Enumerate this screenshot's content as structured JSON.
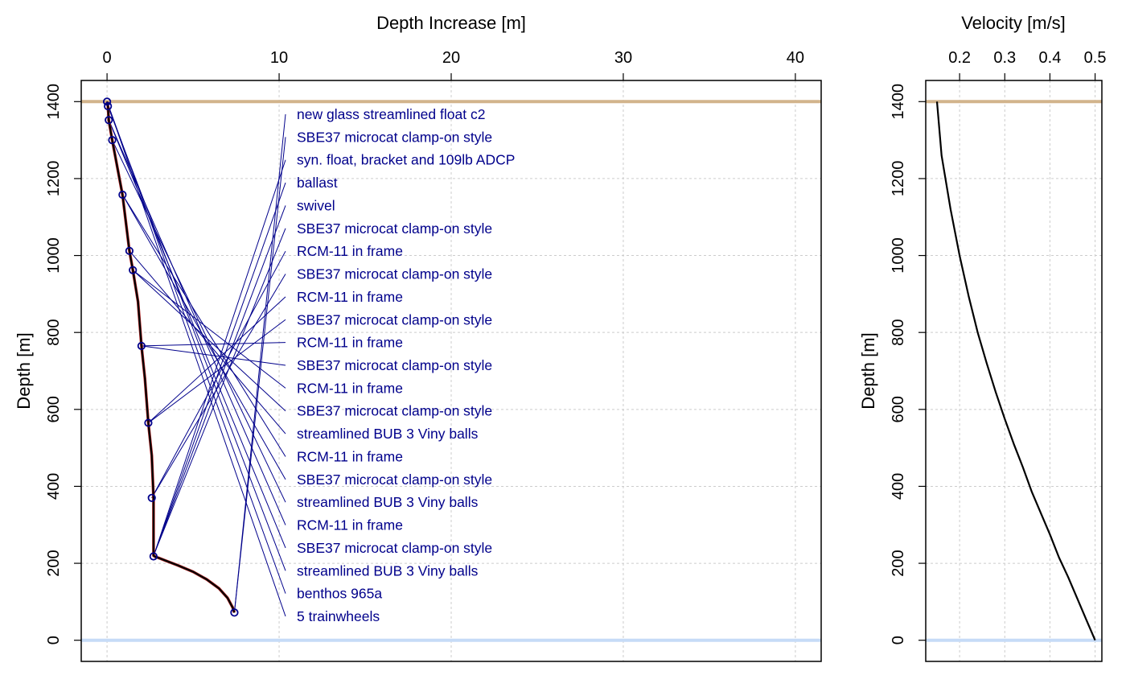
{
  "chart_data": [
    {
      "type": "line",
      "xlabel": "Depth Increase [m]",
      "ylabel": "Depth [m]",
      "xlim": [
        -1.5,
        41.5
      ],
      "ylim": [
        1455,
        -55
      ],
      "x_ticks": [
        0,
        10,
        20,
        30,
        40
      ],
      "y_ticks": [
        0,
        200,
        400,
        600,
        800,
        1000,
        1200,
        1400
      ],
      "x_axis_position": "top",
      "grid": true,
      "surface_depth": 0,
      "bottom_depth": 1400,
      "colors": {
        "surface": "#c6dbf7",
        "bottom": "#d2b48c",
        "instrument": "#00008b",
        "line": "#000000",
        "line_shadow": "#b22222"
      },
      "profile": {
        "x": [
          7.4,
          7.3,
          7.0,
          6.5,
          5.8,
          5.0,
          4.1,
          3.4,
          3.0,
          2.8,
          2.7,
          2.7,
          2.6,
          2.4,
          2.2,
          2.0,
          1.8,
          1.5,
          1.3,
          0.9,
          0.3,
          0.1,
          0.05,
          0.0
        ],
        "y": [
          72,
          85,
          110,
          135,
          158,
          178,
          195,
          207,
          214,
          217,
          220,
          370,
          480,
          565,
          680,
          765,
          880,
          962,
          1012,
          1158,
          1300,
          1352,
          1388,
          1400
        ]
      },
      "instruments": [
        {
          "label": "new glass streamlined float c2",
          "depth": 72,
          "dx": 7.4
        },
        {
          "label": "SBE37 microcat clamp-on style",
          "depth": 72,
          "dx": 7.4
        },
        {
          "label": "syn. float, bracket and 109lb ADCP",
          "depth": 218,
          "dx": 2.7
        },
        {
          "label": "ballast",
          "depth": 218,
          "dx": 2.7
        },
        {
          "label": "swivel",
          "depth": 219,
          "dx": 2.7
        },
        {
          "label": "SBE37 microcat clamp-on style",
          "depth": 220,
          "dx": 2.7
        },
        {
          "label": "RCM-11 in frame",
          "depth": 370,
          "dx": 2.6
        },
        {
          "label": "SBE37 microcat clamp-on style",
          "depth": 370,
          "dx": 2.6
        },
        {
          "label": "RCM-11 in frame",
          "depth": 565,
          "dx": 2.4
        },
        {
          "label": "SBE37 microcat clamp-on style",
          "depth": 565,
          "dx": 2.4
        },
        {
          "label": "RCM-11 in frame",
          "depth": 765,
          "dx": 2.0
        },
        {
          "label": "SBE37 microcat clamp-on style",
          "depth": 765,
          "dx": 2.0
        },
        {
          "label": "RCM-11 in frame",
          "depth": 962,
          "dx": 1.5
        },
        {
          "label": "SBE37 microcat clamp-on style",
          "depth": 962,
          "dx": 1.5
        },
        {
          "label": "streamlined BUB 3 Viny balls",
          "depth": 1012,
          "dx": 1.3
        },
        {
          "label": "RCM-11 in frame",
          "depth": 1158,
          "dx": 0.9
        },
        {
          "label": "SBE37 microcat clamp-on style",
          "depth": 1158,
          "dx": 0.9
        },
        {
          "label": "streamlined BUB 3 Viny balls",
          "depth": 1300,
          "dx": 0.3
        },
        {
          "label": "RCM-11 in frame",
          "depth": 1352,
          "dx": 0.1
        },
        {
          "label": "SBE37 microcat clamp-on style",
          "depth": 1352,
          "dx": 0.1
        },
        {
          "label": "streamlined BUB 3 Viny balls",
          "depth": 1388,
          "dx": 0.05
        },
        {
          "label": "benthos 965a",
          "depth": 1400,
          "dx": 0.0
        },
        {
          "label": "5 trainwheels",
          "depth": 1400,
          "dx": 0.0
        }
      ]
    },
    {
      "type": "line",
      "xlabel": "Velocity [m/s]",
      "ylabel": "Depth [m]",
      "xlim": [
        0.125,
        0.515
      ],
      "ylim": [
        1455,
        -55
      ],
      "x_ticks": [
        0.2,
        0.3,
        0.4,
        0.5
      ],
      "y_ticks": [
        0,
        200,
        400,
        600,
        800,
        1000,
        1200,
        1400
      ],
      "x_axis_position": "top",
      "grid": true,
      "surface_depth": 0,
      "bottom_depth": 1400,
      "colors": {
        "surface": "#c6dbf7",
        "bottom": "#d2b48c",
        "line": "#000000"
      },
      "profile": {
        "x": [
          0.5,
          0.48,
          0.46,
          0.44,
          0.42,
          0.4,
          0.38,
          0.36,
          0.34,
          0.32,
          0.3,
          0.28,
          0.26,
          0.24,
          0.22,
          0.2,
          0.18,
          0.16,
          0.15
        ],
        "y": [
          0,
          55,
          110,
          165,
          215,
          275,
          330,
          385,
          450,
          510,
          575,
          645,
          720,
          800,
          895,
          1000,
          1120,
          1260,
          1400
        ]
      }
    }
  ]
}
